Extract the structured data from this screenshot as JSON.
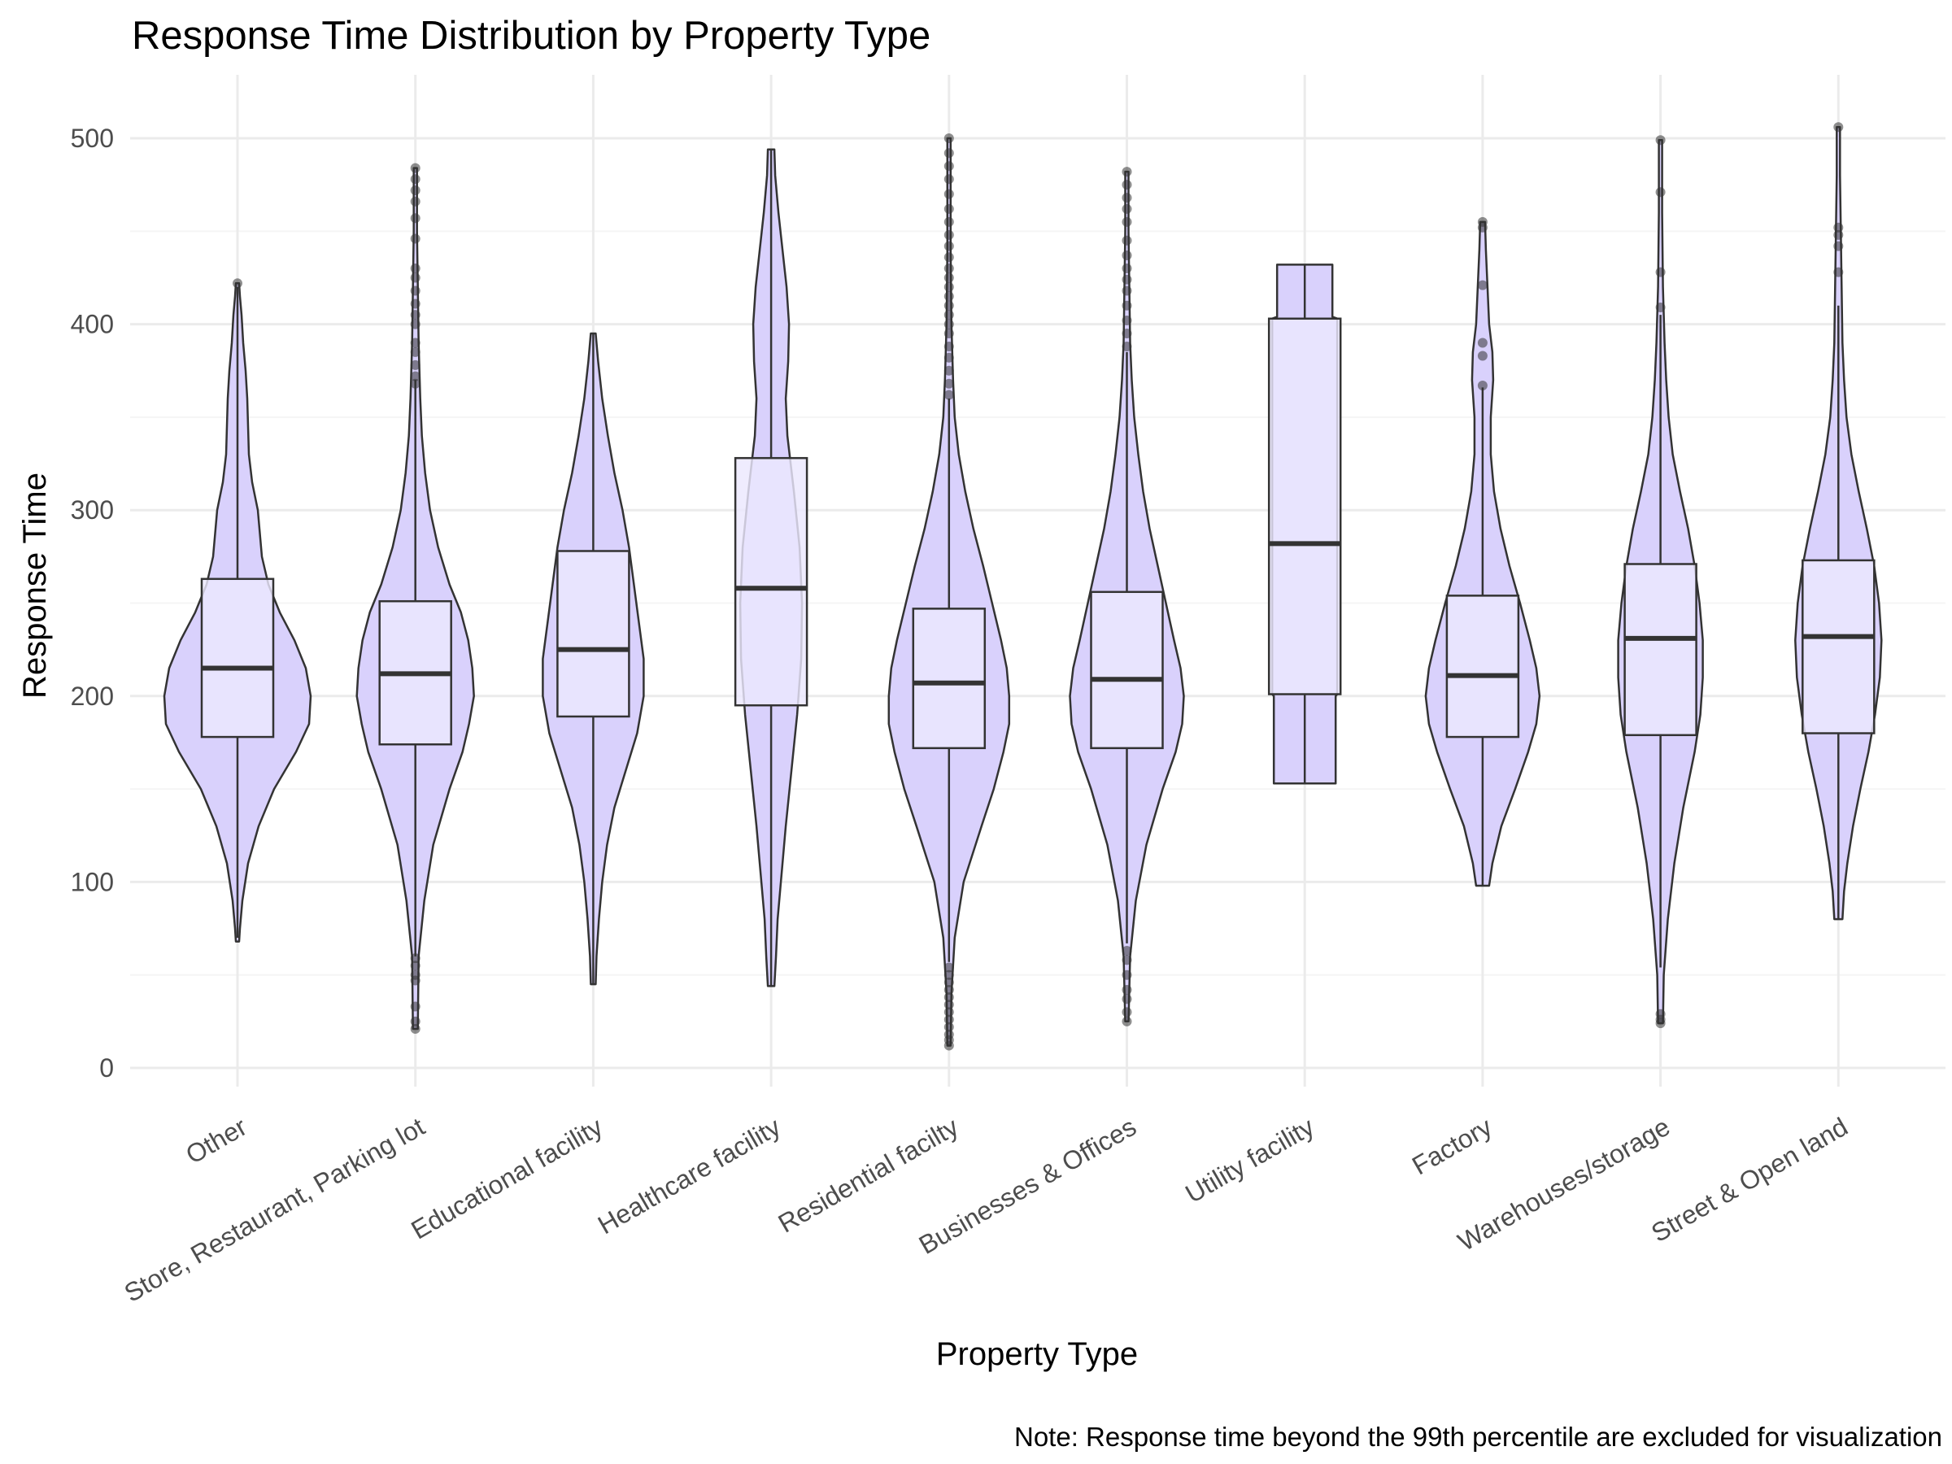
{
  "chart_data": {
    "type": "violin",
    "title": "Response Time Distribution by Property Type",
    "xlabel": "Property Type",
    "ylabel": "Response Time",
    "caption": "Note: Response time beyond the 99th percentile are excluded for visualization",
    "ylim": [
      -10,
      530
    ],
    "yticks": [
      0,
      100,
      200,
      300,
      400,
      500
    ],
    "y_minor_ticks": [
      50,
      150,
      250,
      350,
      450
    ],
    "grid": true,
    "legend": "none",
    "colors": {
      "violin_fill": "#d9d1fc",
      "box_fill": "#ece8fe",
      "outline": "#333333",
      "outlier": "#333333",
      "grid_major": "#ebebeb",
      "grid_minor": "#f5f5f5",
      "text_dark": "#000000",
      "text_axis": "#4d4d4d"
    },
    "categories": [
      "Other",
      "Store, Restaurant, Parking lot",
      "Educational facility",
      "Healthcare facility",
      "Residential facilty",
      "Businesses & Offices",
      "Utility facility",
      "Factory",
      "Warehouses/storage",
      "Street & Open land"
    ],
    "series": [
      {
        "category": "Other",
        "min": 68,
        "max": 422,
        "q1": 178,
        "median": 215,
        "q3": 263,
        "whisker_low": 70,
        "whisker_high": 420,
        "density": [
          [
            68,
            2
          ],
          [
            75,
            3
          ],
          [
            90,
            6
          ],
          [
            110,
            13
          ],
          [
            130,
            26
          ],
          [
            150,
            45
          ],
          [
            170,
            72
          ],
          [
            185,
            88
          ],
          [
            200,
            90
          ],
          [
            215,
            84
          ],
          [
            230,
            70
          ],
          [
            245,
            52
          ],
          [
            260,
            38
          ],
          [
            275,
            30
          ],
          [
            290,
            27
          ],
          [
            300,
            25
          ],
          [
            315,
            18
          ],
          [
            330,
            14
          ],
          [
            345,
            13
          ],
          [
            360,
            12
          ],
          [
            375,
            10
          ],
          [
            390,
            7
          ],
          [
            405,
            5
          ],
          [
            415,
            3
          ],
          [
            422,
            2
          ]
        ],
        "outliers": [
          422
        ]
      },
      {
        "category": "Store, Restaurant, Parking lot",
        "min": 21,
        "max": 484,
        "q1": 174,
        "median": 212,
        "q3": 251,
        "whisker_low": 60,
        "whisker_high": 370,
        "density": [
          [
            21,
            3
          ],
          [
            60,
            4
          ],
          [
            90,
            11
          ],
          [
            120,
            22
          ],
          [
            150,
            42
          ],
          [
            170,
            58
          ],
          [
            185,
            66
          ],
          [
            200,
            72
          ],
          [
            215,
            70
          ],
          [
            230,
            65
          ],
          [
            245,
            56
          ],
          [
            260,
            42
          ],
          [
            280,
            28
          ],
          [
            300,
            18
          ],
          [
            320,
            12
          ],
          [
            340,
            8
          ],
          [
            360,
            6
          ],
          [
            390,
            4
          ],
          [
            420,
            3
          ],
          [
            450,
            2
          ],
          [
            484,
            2
          ]
        ],
        "outliers": [
          21,
          25,
          33,
          47,
          50,
          55,
          59,
          368,
          372,
          378,
          385,
          390,
          400,
          405,
          411,
          418,
          425,
          430,
          446,
          457,
          466,
          472,
          478,
          484
        ]
      },
      {
        "category": "Educational facility",
        "min": 45,
        "max": 395,
        "q1": 189,
        "median": 225,
        "q3": 278,
        "whisker_low": 45,
        "whisker_high": 395,
        "density": [
          [
            45,
            3
          ],
          [
            60,
            4
          ],
          [
            80,
            7
          ],
          [
            100,
            11
          ],
          [
            120,
            17
          ],
          [
            140,
            26
          ],
          [
            160,
            40
          ],
          [
            180,
            54
          ],
          [
            200,
            62
          ],
          [
            220,
            62
          ],
          [
            240,
            56
          ],
          [
            260,
            50
          ],
          [
            280,
            44
          ],
          [
            300,
            36
          ],
          [
            320,
            26
          ],
          [
            340,
            18
          ],
          [
            360,
            11
          ],
          [
            380,
            6
          ],
          [
            395,
            3
          ]
        ],
        "outliers": []
      },
      {
        "category": "Healthcare facility",
        "min": 44,
        "max": 494,
        "q1": 195,
        "median": 258,
        "q3": 328,
        "whisker_low": 44,
        "whisker_high": 494,
        "density": [
          [
            44,
            4
          ],
          [
            60,
            6
          ],
          [
            80,
            8
          ],
          [
            100,
            12
          ],
          [
            130,
            18
          ],
          [
            160,
            25
          ],
          [
            190,
            32
          ],
          [
            220,
            37
          ],
          [
            250,
            38
          ],
          [
            280,
            35
          ],
          [
            310,
            28
          ],
          [
            340,
            20
          ],
          [
            360,
            18
          ],
          [
            380,
            21
          ],
          [
            400,
            22
          ],
          [
            420,
            19
          ],
          [
            440,
            14
          ],
          [
            460,
            9
          ],
          [
            480,
            5
          ],
          [
            494,
            4
          ]
        ],
        "outliers": []
      },
      {
        "category": "Residential facilty",
        "min": 12,
        "max": 500,
        "q1": 172,
        "median": 207,
        "q3": 247,
        "whisker_low": 57,
        "whisker_high": 360,
        "density": [
          [
            12,
            2
          ],
          [
            40,
            3
          ],
          [
            70,
            7
          ],
          [
            100,
            18
          ],
          [
            130,
            40
          ],
          [
            150,
            55
          ],
          [
            170,
            67
          ],
          [
            185,
            74
          ],
          [
            200,
            74
          ],
          [
            215,
            71
          ],
          [
            230,
            64
          ],
          [
            250,
            53
          ],
          [
            270,
            42
          ],
          [
            290,
            30
          ],
          [
            310,
            20
          ],
          [
            330,
            12
          ],
          [
            350,
            7
          ],
          [
            370,
            5
          ],
          [
            400,
            3
          ],
          [
            440,
            2
          ],
          [
            500,
            2
          ]
        ],
        "outliers": [
          12,
          15,
          18,
          22,
          26,
          30,
          34,
          38,
          42,
          46,
          50,
          54,
          362,
          368,
          375,
          382,
          388,
          395,
          400,
          405,
          410,
          415,
          420,
          425,
          430,
          436,
          442,
          448,
          455,
          462,
          470,
          478,
          485,
          492,
          500
        ]
      },
      {
        "category": "Businesses & Offices",
        "min": 25,
        "max": 482,
        "q1": 172,
        "median": 209,
        "q3": 256,
        "whisker_low": 67,
        "whisker_high": 385,
        "density": [
          [
            25,
            2
          ],
          [
            60,
            4
          ],
          [
            90,
            11
          ],
          [
            120,
            24
          ],
          [
            150,
            44
          ],
          [
            170,
            60
          ],
          [
            185,
            68
          ],
          [
            200,
            70
          ],
          [
            215,
            66
          ],
          [
            230,
            58
          ],
          [
            250,
            48
          ],
          [
            270,
            38
          ],
          [
            290,
            28
          ],
          [
            310,
            20
          ],
          [
            330,
            14
          ],
          [
            350,
            9
          ],
          [
            370,
            6
          ],
          [
            390,
            4
          ],
          [
            420,
            3
          ],
          [
            450,
            2
          ],
          [
            482,
            2
          ]
        ],
        "outliers": [
          25,
          30,
          37,
          42,
          50,
          58,
          63,
          388,
          395,
          402,
          410,
          418,
          424,
          430,
          437,
          445,
          455,
          462,
          468,
          475,
          482
        ]
      },
      {
        "category": "Utility facility",
        "min": 153,
        "max": 432,
        "q1": 201,
        "median": 282,
        "q3": 403,
        "whisker_low": 153,
        "whisker_high": 432,
        "density": [
          [
            153,
            38
          ],
          [
            200,
            38
          ],
          [
            201,
            40
          ],
          [
            240,
            40
          ],
          [
            280,
            40
          ],
          [
            320,
            40
          ],
          [
            360,
            40
          ],
          [
            403,
            40
          ],
          [
            404,
            34
          ],
          [
            432,
            34
          ]
        ],
        "outliers": []
      },
      {
        "category": "Factory",
        "min": 98,
        "max": 455,
        "q1": 178,
        "median": 211,
        "q3": 254,
        "whisker_low": 98,
        "whisker_high": 366,
        "density": [
          [
            98,
            8
          ],
          [
            110,
            12
          ],
          [
            130,
            23
          ],
          [
            150,
            40
          ],
          [
            170,
            56
          ],
          [
            185,
            66
          ],
          [
            200,
            70
          ],
          [
            215,
            66
          ],
          [
            230,
            58
          ],
          [
            250,
            46
          ],
          [
            270,
            33
          ],
          [
            290,
            22
          ],
          [
            310,
            14
          ],
          [
            330,
            10
          ],
          [
            350,
            10
          ],
          [
            370,
            13
          ],
          [
            385,
            12
          ],
          [
            400,
            8
          ],
          [
            420,
            6
          ],
          [
            440,
            4
          ],
          [
            455,
            3
          ]
        ],
        "outliers": [
          367,
          383,
          390,
          421,
          452,
          455
        ]
      },
      {
        "category": "Warehouses/storage",
        "min": 24,
        "max": 499,
        "q1": 179,
        "median": 231,
        "q3": 271,
        "whisker_low": 54,
        "whisker_high": 405,
        "density": [
          [
            24,
            3
          ],
          [
            50,
            4
          ],
          [
            80,
            9
          ],
          [
            110,
            17
          ],
          [
            140,
            28
          ],
          [
            170,
            42
          ],
          [
            190,
            49
          ],
          [
            210,
            52
          ],
          [
            230,
            52
          ],
          [
            250,
            48
          ],
          [
            270,
            42
          ],
          [
            290,
            34
          ],
          [
            310,
            24
          ],
          [
            330,
            15
          ],
          [
            350,
            10
          ],
          [
            370,
            7
          ],
          [
            390,
            5
          ],
          [
            420,
            3
          ],
          [
            460,
            2
          ],
          [
            499,
            2
          ]
        ],
        "outliers": [
          24,
          26,
          29,
          409,
          428,
          471,
          499
        ]
      },
      {
        "category": "Street & Open land",
        "min": 80,
        "max": 506,
        "q1": 180,
        "median": 232,
        "q3": 273,
        "whisker_low": 80,
        "whisker_high": 410,
        "density": [
          [
            80,
            5
          ],
          [
            95,
            7
          ],
          [
            110,
            11
          ],
          [
            130,
            18
          ],
          [
            150,
            27
          ],
          [
            170,
            37
          ],
          [
            190,
            45
          ],
          [
            210,
            51
          ],
          [
            230,
            53
          ],
          [
            250,
            50
          ],
          [
            270,
            44
          ],
          [
            290,
            35
          ],
          [
            310,
            25
          ],
          [
            330,
            16
          ],
          [
            350,
            10
          ],
          [
            370,
            7
          ],
          [
            390,
            5
          ],
          [
            420,
            4
          ],
          [
            450,
            3
          ],
          [
            480,
            2
          ],
          [
            506,
            2
          ]
        ],
        "outliers": [
          428,
          442,
          448,
          452,
          506
        ]
      }
    ]
  }
}
